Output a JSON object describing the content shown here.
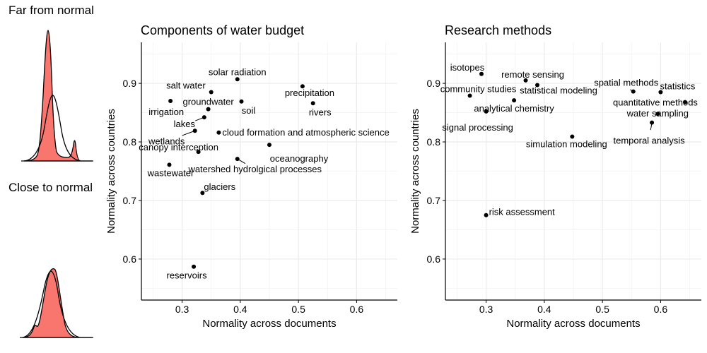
{
  "sidebar": {
    "far_title": "Far from normal",
    "close_title": "Close to normal"
  },
  "colors": {
    "fill": "#f8766d",
    "grid": "#ebebeb",
    "axis": "#000000"
  },
  "chart_data": [
    {
      "type": "scatter",
      "title": "Components of water budget",
      "xlabel": "Normality across documents",
      "ylabel": "Normality across countries",
      "xlim": [
        0.23,
        0.67
      ],
      "ylim": [
        0.53,
        0.97
      ],
      "xticks": [
        0.3,
        0.4,
        0.5,
        0.6
      ],
      "yticks": [
        0.6,
        0.7,
        0.8,
        0.9
      ],
      "grid": true,
      "points": [
        {
          "label": "solar radiation",
          "x": 0.395,
          "y": 0.907
        },
        {
          "label": "precipitation",
          "x": 0.507,
          "y": 0.895
        },
        {
          "label": "salt water",
          "x": 0.35,
          "y": 0.885
        },
        {
          "label": "irrigation",
          "x": 0.28,
          "y": 0.87
        },
        {
          "label": "groundwater",
          "x": 0.345,
          "y": 0.856
        },
        {
          "label": "soil",
          "x": 0.402,
          "y": 0.869
        },
        {
          "label": "rivers",
          "x": 0.525,
          "y": 0.866
        },
        {
          "label": "lakes",
          "x": 0.338,
          "y": 0.842
        },
        {
          "label": "wetlands",
          "x": 0.322,
          "y": 0.819
        },
        {
          "label": "cloud formation and atmospheric science",
          "x": 0.363,
          "y": 0.816
        },
        {
          "label": "canopy interception",
          "x": 0.328,
          "y": 0.783
        },
        {
          "label": "oceanography",
          "x": 0.45,
          "y": 0.795
        },
        {
          "label": "watershed hydrolgical processes",
          "x": 0.395,
          "y": 0.771
        },
        {
          "label": "wastewater",
          "x": 0.278,
          "y": 0.761
        },
        {
          "label": "glaciers",
          "x": 0.335,
          "y": 0.713
        },
        {
          "label": "reservoirs",
          "x": 0.32,
          "y": 0.587
        }
      ]
    },
    {
      "type": "scatter",
      "title": "Research methods",
      "xlabel": "Normality across documents",
      "ylabel": "Normality across countries",
      "xlim": [
        0.23,
        0.67
      ],
      "ylim": [
        0.53,
        0.97
      ],
      "xticks": [
        0.3,
        0.4,
        0.5,
        0.6
      ],
      "yticks": [
        0.6,
        0.7,
        0.8,
        0.9
      ],
      "grid": true,
      "points": [
        {
          "label": "isotopes",
          "x": 0.292,
          "y": 0.916
        },
        {
          "label": "remote sensing",
          "x": 0.368,
          "y": 0.905
        },
        {
          "label": "spatial methods",
          "x": 0.553,
          "y": 0.886
        },
        {
          "label": "statistics",
          "x": 0.6,
          "y": 0.885
        },
        {
          "label": "community studies",
          "x": 0.272,
          "y": 0.879
        },
        {
          "label": "statistical modeling",
          "x": 0.388,
          "y": 0.897
        },
        {
          "label": "quantitative methods",
          "x": 0.642,
          "y": 0.868
        },
        {
          "label": "analytical chemistry",
          "x": 0.348,
          "y": 0.871
        },
        {
          "label": "signal processing",
          "x": 0.3,
          "y": 0.852
        },
        {
          "label": "water sampling",
          "x": 0.595,
          "y": 0.848
        },
        {
          "label": "temporal analysis",
          "x": 0.585,
          "y": 0.833
        },
        {
          "label": "simulation modeling",
          "x": 0.448,
          "y": 0.809
        },
        {
          "label": "risk assessment",
          "x": 0.3,
          "y": 0.675
        }
      ]
    }
  ]
}
